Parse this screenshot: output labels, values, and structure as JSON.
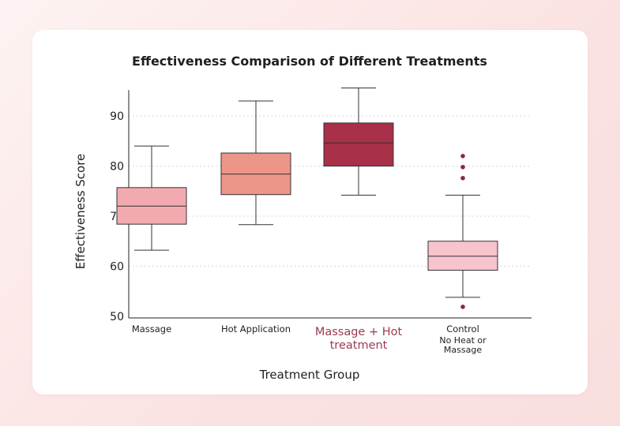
{
  "chart_data": {
    "type": "box",
    "title": "Effectiveness Comparison of Different Treatments",
    "xlabel": "Treatment Group",
    "ylabel": "Effectiveness  Score",
    "ylim": [
      50,
      95
    ],
    "yticks": [
      50,
      60,
      70,
      80,
      90
    ],
    "grid": "horizontal dotted",
    "categories": [
      {
        "label": "Massage",
        "lines": [
          "Massage"
        ],
        "highlight": false
      },
      {
        "label": "Hot Application",
        "lines": [
          "Hot Application"
        ],
        "highlight": false
      },
      {
        "label": "Massage + Hot treatment",
        "lines": [
          "Massage + Hot",
          "treatment"
        ],
        "highlight": true
      },
      {
        "label": "Control No Heat or Massage",
        "lines": [
          "Control",
          "No Heat or",
          "Massage"
        ],
        "highlight": false
      }
    ],
    "boxes": [
      {
        "whisker_low": 63.2,
        "q1": 68.4,
        "median": 72.0,
        "q3": 75.7,
        "whisker_high": 84.0,
        "outliers": [],
        "color": "#f2aab1"
      },
      {
        "whisker_low": 68.3,
        "q1": 74.3,
        "median": 78.4,
        "q3": 82.6,
        "whisker_high": 93.0,
        "outliers": [],
        "color": "#ec9589"
      },
      {
        "whisker_low": 74.2,
        "q1": 80.0,
        "median": 84.6,
        "q3": 88.6,
        "whisker_high": 95.6,
        "outliers": [],
        "color": "#a83048"
      },
      {
        "whisker_low": 53.8,
        "q1": 59.2,
        "median": 62.0,
        "q3": 65.0,
        "whisker_high": 74.2,
        "outliers": [
          51.9,
          77.6,
          79.8,
          82.0
        ],
        "color": "#f7c3cc"
      }
    ],
    "outlier_color": "#8a2a3f"
  }
}
